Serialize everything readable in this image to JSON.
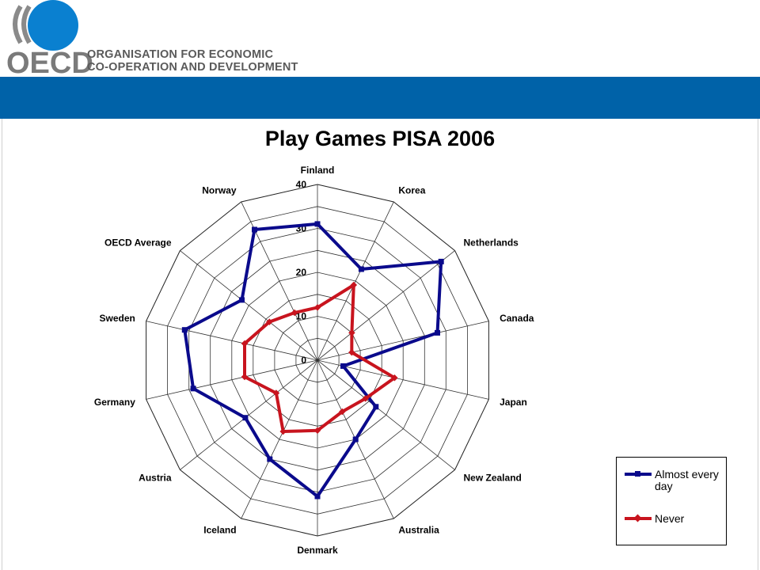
{
  "header": {
    "logo_text": "OECD",
    "org_line1": "ORGANISATION FOR ECONOMIC",
    "org_line2": "CO-OPERATION AND DEVELOPMENT",
    "brand_color": "#0062a8"
  },
  "chart_data": {
    "type": "radar",
    "title": "Play Games PISA 2006",
    "categories": [
      "Finland",
      "Korea",
      "Netherlands",
      "Canada",
      "Japan",
      "New Zealand",
      "Australia",
      "Denmark",
      "Iceland",
      "Austria",
      "Germany",
      "Sweden",
      "OECD Average",
      "Norway"
    ],
    "radial_ticks": [
      "0",
      "10",
      "20",
      "30",
      "40"
    ],
    "rlim": [
      0,
      40
    ],
    "grid": true,
    "legend_position": "bottom-right",
    "series": [
      {
        "name": "Almost every day",
        "color": "#0a0a8c",
        "values": [
          31,
          23,
          36,
          28,
          6,
          17,
          20,
          31,
          25,
          21,
          29,
          31,
          22,
          33
        ]
      },
      {
        "name": "Never",
        "color": "#c8141e",
        "values": [
          12,
          19,
          10,
          8,
          18,
          14,
          13,
          16,
          18,
          12,
          17,
          17,
          14,
          12
        ]
      }
    ]
  },
  "legend": {
    "item1": "Almost every day",
    "item2": "Never"
  }
}
